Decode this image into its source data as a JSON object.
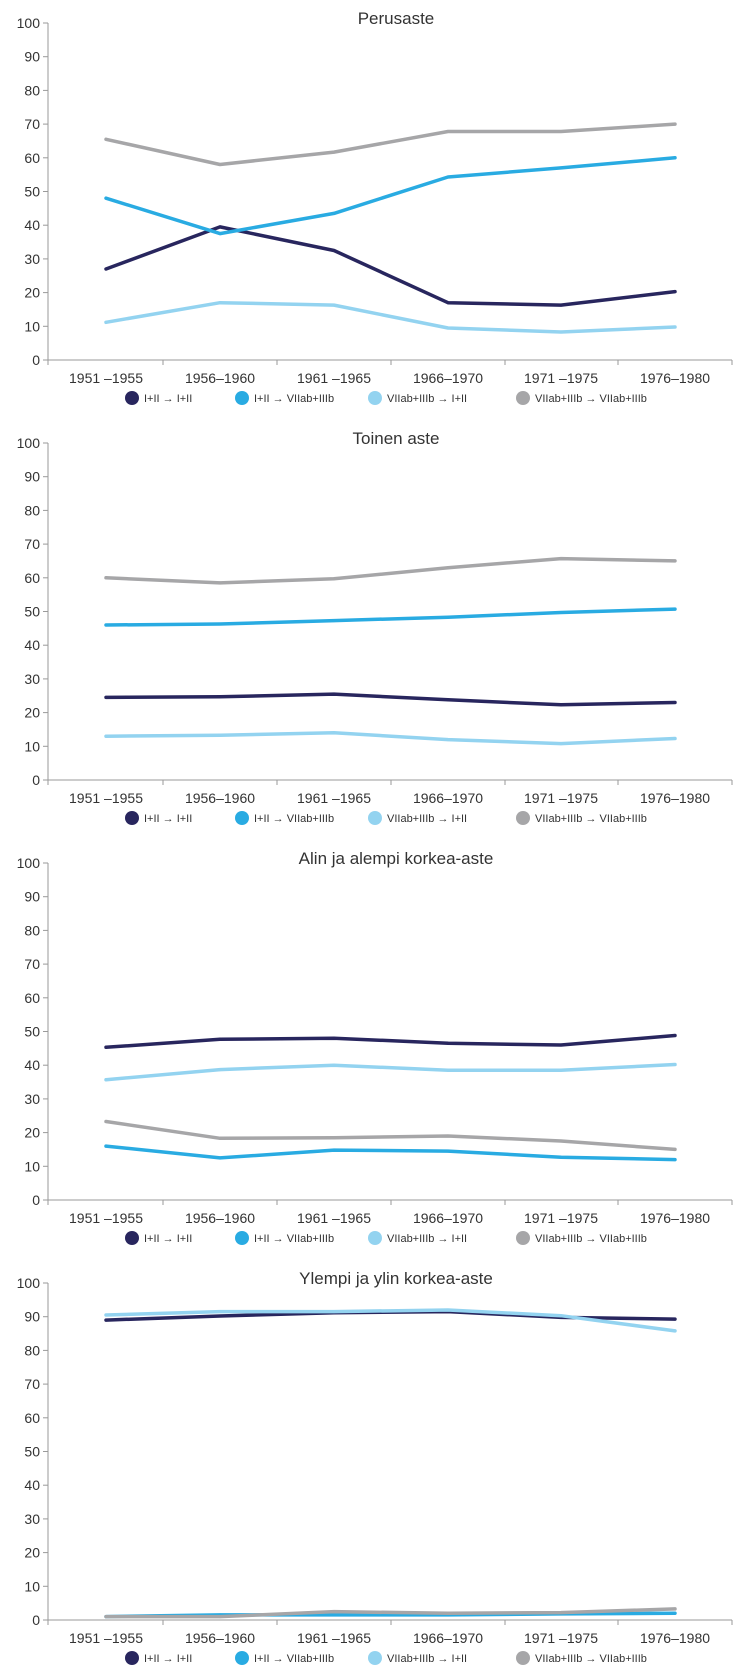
{
  "colors": {
    "dark_navy": "#28265e",
    "medium_blue": "#29abe2",
    "light_blue": "#93d3f0",
    "gray": "#a6a6a8",
    "axis": "#9a9a9a",
    "text": "#333333"
  },
  "chart_data": [
    {
      "type": "line",
      "title": "Perusaste",
      "categories": [
        "1951 –1955",
        "1956–1960",
        "1961 –1965",
        "1966–1970",
        "1971 –1975",
        "1976–1980"
      ],
      "ylim": [
        0,
        100
      ],
      "yticks": [
        0,
        10,
        20,
        30,
        40,
        50,
        60,
        70,
        80,
        90,
        100
      ],
      "grid": false,
      "legend_position": "bottom",
      "series": [
        {
          "name": "I+II → I+II",
          "color": "#28265e",
          "values": [
            27,
            39.5,
            32.5,
            17,
            16.3,
            20.3
          ]
        },
        {
          "name": "I+II → VIIab+IIIb",
          "color": "#29abe2",
          "values": [
            48,
            37.5,
            43.5,
            54.3,
            57,
            60
          ]
        },
        {
          "name": "VIIab+IIIb → I+II",
          "color": "#93d3f0",
          "values": [
            11.2,
            17,
            16.3,
            9.5,
            8.3,
            9.8
          ]
        },
        {
          "name": "VIIab+IIIb → VIIab+IIIb",
          "color": "#a6a6a8",
          "values": [
            65.5,
            58,
            61.7,
            67.8,
            67.8,
            70
          ]
        }
      ]
    },
    {
      "type": "line",
      "title": "Toinen aste",
      "categories": [
        "1951 –1955",
        "1956–1960",
        "1961 –1965",
        "1966–1970",
        "1971 –1975",
        "1976–1980"
      ],
      "ylim": [
        0,
        100
      ],
      "yticks": [
        0,
        10,
        20,
        30,
        40,
        50,
        60,
        70,
        80,
        90,
        100
      ],
      "grid": false,
      "legend_position": "bottom",
      "series": [
        {
          "name": "I+II → I+II",
          "color": "#28265e",
          "values": [
            24.5,
            24.7,
            25.5,
            23.8,
            22.3,
            23
          ]
        },
        {
          "name": "I+II → VIIab+IIIb",
          "color": "#29abe2",
          "values": [
            46,
            46.3,
            47.3,
            48.3,
            49.7,
            50.7
          ]
        },
        {
          "name": "VIIab+IIIb → I+II",
          "color": "#93d3f0",
          "values": [
            13,
            13.3,
            14,
            12,
            10.8,
            12.3
          ]
        },
        {
          "name": "VIIab+IIIb → VIIab+IIIb",
          "color": "#a6a6a8",
          "values": [
            60,
            58.5,
            59.7,
            63,
            65.7,
            65
          ]
        }
      ]
    },
    {
      "type": "line",
      "title": "Alin ja alempi korkea-aste",
      "categories": [
        "1951 –1955",
        "1956–1960",
        "1961 –1965",
        "1966–1970",
        "1971 –1975",
        "1976–1980"
      ],
      "ylim": [
        0,
        100
      ],
      "yticks": [
        0,
        10,
        20,
        30,
        40,
        50,
        60,
        70,
        80,
        90,
        100
      ],
      "grid": false,
      "legend_position": "bottom",
      "series": [
        {
          "name": "I+II → I+II",
          "color": "#28265e",
          "values": [
            45.3,
            47.7,
            48,
            46.5,
            46,
            48.8
          ]
        },
        {
          "name": "I+II → VIIab+IIIb",
          "color": "#29abe2",
          "values": [
            16,
            12.5,
            14.8,
            14.5,
            12.7,
            12
          ]
        },
        {
          "name": "VIIab+IIIb → I+II",
          "color": "#93d3f0",
          "values": [
            35.7,
            38.7,
            40,
            38.5,
            38.5,
            40.2
          ]
        },
        {
          "name": "VIIab+IIIb → VIIab+IIIb",
          "color": "#a6a6a8",
          "values": [
            23.3,
            18.3,
            18.5,
            19,
            17.5,
            15
          ]
        }
      ]
    },
    {
      "type": "line",
      "title": "Ylempi ja ylin korkea-aste",
      "categories": [
        "1951 –1955",
        "1956–1960",
        "1961 –1965",
        "1966–1970",
        "1971 –1975",
        "1976–1980"
      ],
      "ylim": [
        0,
        100
      ],
      "yticks": [
        0,
        10,
        20,
        30,
        40,
        50,
        60,
        70,
        80,
        90,
        100
      ],
      "grid": false,
      "legend_position": "bottom",
      "series": [
        {
          "name": "I+II → I+II",
          "color": "#28265e",
          "values": [
            89,
            90.2,
            91.2,
            91.5,
            89.8,
            89.3
          ]
        },
        {
          "name": "I+II → VIIab+IIIb",
          "color": "#29abe2",
          "values": [
            1,
            1.5,
            1.5,
            1.5,
            1.8,
            2
          ]
        },
        {
          "name": "VIIab+IIIb → I+II",
          "color": "#93d3f0",
          "values": [
            90.5,
            91.5,
            91.5,
            92,
            90.3,
            85.8
          ]
        },
        {
          "name": "VIIab+IIIb → VIIab+IIIb",
          "color": "#a6a6a8",
          "values": [
            1,
            1,
            2.5,
            2,
            2.2,
            3.3
          ]
        }
      ]
    }
  ]
}
